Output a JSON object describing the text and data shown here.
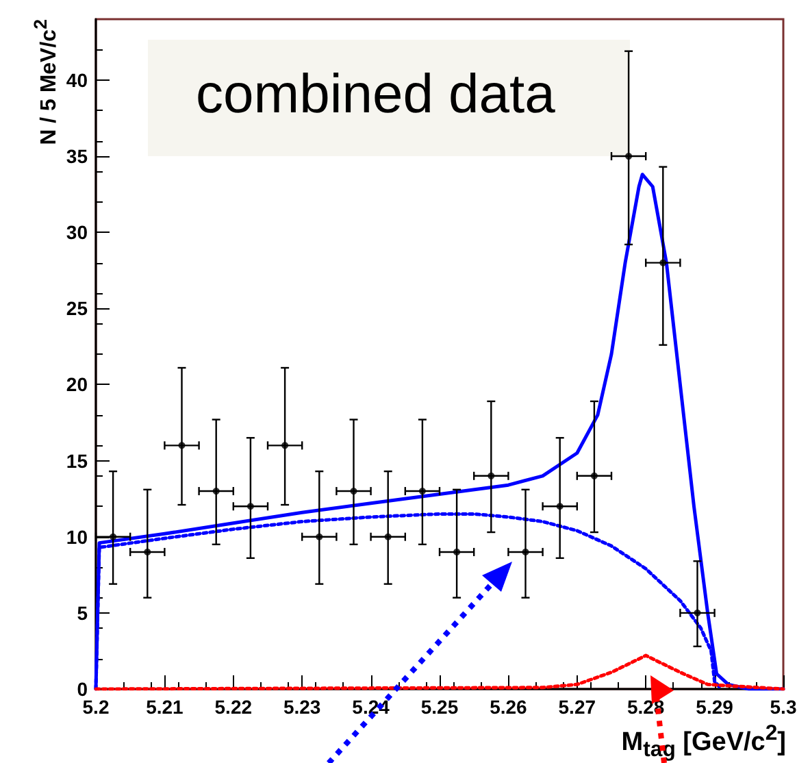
{
  "chart_data": {
    "type": "scatter",
    "xlabel": "M$_{tag}$ [GeV/c$^{2}$]",
    "ylabel": "N / 5 MeV/c$^{2}$",
    "annotations": [
      "combined data"
    ],
    "xlim": [
      5.2,
      5.3
    ],
    "xticks": [
      5.2,
      5.21,
      5.22,
      5.23,
      5.24,
      5.25,
      5.26,
      5.27,
      5.28,
      5.29,
      5.3
    ],
    "ylim": [
      0,
      44
    ],
    "yticks": [
      0,
      5,
      10,
      15,
      20,
      25,
      30,
      35,
      40
    ],
    "series": [
      {
        "marker": "circle",
        "color": "#000000",
        "x": [
          5.2025,
          5.2075,
          5.2125,
          5.2175,
          5.2225,
          5.2275,
          5.2325,
          5.2375,
          5.2425,
          5.2475,
          5.2525,
          5.2575,
          5.2625,
          5.2675,
          5.2725,
          5.2775,
          5.2825,
          5.2875
        ],
        "values": [
          10,
          9,
          16,
          13,
          12,
          16,
          10,
          13,
          10,
          13,
          9,
          14,
          9,
          12,
          14,
          35,
          28,
          5
        ],
        "errors": [
          [
            6.9,
            14.3
          ],
          [
            6,
            13.1
          ],
          [
            12.1,
            21.1
          ],
          [
            9.5,
            17.7
          ],
          [
            8.6,
            16.5
          ],
          [
            12.1,
            21.1
          ],
          [
            6.9,
            14.3
          ],
          [
            9.5,
            17.7
          ],
          [
            6.9,
            14.3
          ],
          [
            9.5,
            17.7
          ],
          [
            6,
            13.1
          ],
          [
            10.3,
            18.9
          ],
          [
            6,
            13.1
          ],
          [
            8.6,
            16.5
          ],
          [
            10.3,
            18.9
          ],
          [
            29.2,
            41.9
          ],
          [
            22.6,
            34.3
          ],
          [
            2.8,
            8.4
          ]
        ],
        "xerrors": [
          0.0025,
          0.0025,
          0.0025,
          0.0025,
          0.0025,
          0.0025,
          0.0025,
          0.0025,
          0.0025,
          0.0025,
          0.0025,
          0.0025,
          0.0025,
          0.0025,
          0.0025,
          0.0025,
          0.0025,
          0.0025
        ]
      },
      {
        "type": "line",
        "color": "#0000ff",
        "line_style": "solid",
        "x": [
          5.2,
          5.2005,
          5.21,
          5.22,
          5.23,
          5.24,
          5.25,
          5.26,
          5.265,
          5.27,
          5.273,
          5.275,
          5.277,
          5.279,
          5.2795,
          5.281,
          5.283,
          5.285,
          5.287,
          5.289,
          5.2903,
          5.292,
          5.295,
          5.3
        ],
        "values": [
          0,
          9.6,
          10.2,
          10.9,
          11.6,
          12.2,
          12.8,
          13.4,
          14,
          15.5,
          18,
          22,
          28,
          33,
          33.8,
          33,
          28,
          20,
          12,
          5,
          1,
          0.3,
          0,
          0
        ]
      },
      {
        "type": "line",
        "color": "#0000ff",
        "line_style": "dotted",
        "x": [
          5.2,
          5.2005,
          5.21,
          5.22,
          5.23,
          5.24,
          5.25,
          5.255,
          5.26,
          5.265,
          5.27,
          5.275,
          5.28,
          5.285,
          5.288,
          5.2895,
          5.29,
          5.291
        ],
        "values": [
          0,
          9.3,
          9.9,
          10.5,
          11,
          11.3,
          11.5,
          11.5,
          11.3,
          11,
          10.4,
          9.4,
          7.9,
          5.8,
          4,
          2.5,
          0.5,
          0
        ]
      },
      {
        "type": "line",
        "color": "#ff0000",
        "line_style": "dotted",
        "x": [
          5.2,
          5.265,
          5.27,
          5.275,
          5.28,
          5.285,
          5.289,
          5.3
        ],
        "values": [
          0,
          0.1,
          0.3,
          1.1,
          2.2,
          1.1,
          0.3,
          0
        ]
      }
    ]
  }
}
